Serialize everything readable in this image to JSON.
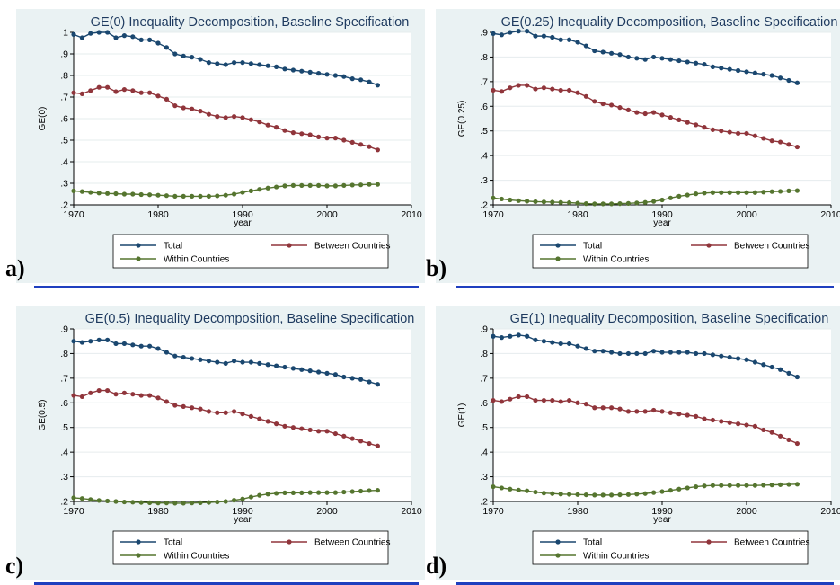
{
  "panel_labels": [
    "a)",
    "b)",
    "c)",
    "d)"
  ],
  "colors": {
    "background": "#eaf2f3",
    "total": "#1a476f",
    "between": "#90353b",
    "within": "#55752f",
    "underline": "#1f3fbf"
  },
  "chart_data": [
    {
      "type": "line",
      "title": "GE(0) Inequality Decomposition, Baseline Specification",
      "xlabel": "year",
      "ylabel": "GE(0)",
      "xlim": [
        1970,
        2010
      ],
      "ylim": [
        0.2,
        1.0
      ],
      "xticks": [
        "1970",
        "1980",
        "1990",
        "2000",
        "2010"
      ],
      "yticks": [
        ".2",
        ".3",
        ".4",
        ".5",
        ".6",
        ".7",
        ".8",
        ".9",
        "1"
      ],
      "legend": "bottom",
      "x": [
        1970,
        1971,
        1972,
        1973,
        1974,
        1975,
        1976,
        1977,
        1978,
        1979,
        1980,
        1981,
        1982,
        1983,
        1984,
        1985,
        1986,
        1987,
        1988,
        1989,
        1990,
        1991,
        1992,
        1993,
        1994,
        1995,
        1996,
        1997,
        1998,
        1999,
        2000,
        2001,
        2002,
        2003,
        2004,
        2005,
        2006
      ],
      "series": [
        {
          "name": "Total",
          "values": [
            0.99,
            0.975,
            0.995,
            1.0,
            1.0,
            0.975,
            0.985,
            0.98,
            0.965,
            0.965,
            0.95,
            0.93,
            0.9,
            0.89,
            0.885,
            0.875,
            0.86,
            0.855,
            0.85,
            0.86,
            0.86,
            0.855,
            0.85,
            0.845,
            0.84,
            0.83,
            0.825,
            0.82,
            0.815,
            0.81,
            0.805,
            0.8,
            0.795,
            0.785,
            0.78,
            0.77,
            0.755
          ]
        },
        {
          "name": "Between Countries",
          "values": [
            0.72,
            0.715,
            0.73,
            0.745,
            0.745,
            0.725,
            0.735,
            0.73,
            0.72,
            0.72,
            0.705,
            0.69,
            0.66,
            0.65,
            0.645,
            0.635,
            0.62,
            0.61,
            0.605,
            0.61,
            0.605,
            0.595,
            0.585,
            0.57,
            0.56,
            0.545,
            0.535,
            0.53,
            0.525,
            0.515,
            0.51,
            0.51,
            0.5,
            0.49,
            0.48,
            0.47,
            0.455
          ]
        },
        {
          "name": "Within Countries",
          "values": [
            0.265,
            0.262,
            0.258,
            0.255,
            0.253,
            0.252,
            0.25,
            0.25,
            0.248,
            0.247,
            0.245,
            0.243,
            0.24,
            0.24,
            0.24,
            0.24,
            0.24,
            0.242,
            0.245,
            0.25,
            0.258,
            0.265,
            0.272,
            0.278,
            0.283,
            0.288,
            0.29,
            0.29,
            0.29,
            0.29,
            0.288,
            0.288,
            0.29,
            0.292,
            0.293,
            0.295,
            0.295
          ]
        }
      ]
    },
    {
      "type": "line",
      "title": "GE(0.25) Inequality Decomposition, Baseline Specification",
      "xlabel": "year",
      "ylabel": "GE(0.25)",
      "xlim": [
        1970,
        2010
      ],
      "ylim": [
        0.2,
        0.9
      ],
      "xticks": [
        "1970",
        "1980",
        "1990",
        "2000",
        "2010"
      ],
      "yticks": [
        ".2",
        ".3",
        ".4",
        ".5",
        ".6",
        ".7",
        ".8",
        ".9"
      ],
      "legend": "bottom",
      "x": [
        1970,
        1971,
        1972,
        1973,
        1974,
        1975,
        1976,
        1977,
        1978,
        1979,
        1980,
        1981,
        1982,
        1983,
        1984,
        1985,
        1986,
        1987,
        1988,
        1989,
        1990,
        1991,
        1992,
        1993,
        1994,
        1995,
        1996,
        1997,
        1998,
        1999,
        2000,
        2001,
        2002,
        2003,
        2004,
        2005,
        2006
      ],
      "series": [
        {
          "name": "Total",
          "values": [
            0.895,
            0.89,
            0.9,
            0.905,
            0.905,
            0.885,
            0.885,
            0.88,
            0.87,
            0.87,
            0.86,
            0.845,
            0.825,
            0.82,
            0.815,
            0.81,
            0.8,
            0.795,
            0.79,
            0.8,
            0.795,
            0.79,
            0.785,
            0.78,
            0.775,
            0.77,
            0.76,
            0.755,
            0.75,
            0.745,
            0.74,
            0.735,
            0.73,
            0.725,
            0.715,
            0.705,
            0.695
          ]
        },
        {
          "name": "Between Countries",
          "values": [
            0.665,
            0.66,
            0.675,
            0.685,
            0.685,
            0.67,
            0.675,
            0.67,
            0.665,
            0.665,
            0.655,
            0.64,
            0.62,
            0.61,
            0.605,
            0.595,
            0.585,
            0.575,
            0.57,
            0.575,
            0.565,
            0.555,
            0.545,
            0.535,
            0.525,
            0.515,
            0.505,
            0.5,
            0.495,
            0.49,
            0.49,
            0.48,
            0.47,
            0.46,
            0.455,
            0.445,
            0.435
          ]
        },
        {
          "name": "Within Countries",
          "values": [
            0.228,
            0.224,
            0.22,
            0.217,
            0.215,
            0.213,
            0.212,
            0.211,
            0.21,
            0.209,
            0.207,
            0.205,
            0.204,
            0.204,
            0.204,
            0.205,
            0.206,
            0.208,
            0.21,
            0.214,
            0.22,
            0.228,
            0.235,
            0.24,
            0.245,
            0.248,
            0.25,
            0.25,
            0.25,
            0.25,
            0.25,
            0.25,
            0.252,
            0.254,
            0.255,
            0.257,
            0.258
          ]
        }
      ]
    },
    {
      "type": "line",
      "title": "GE(0.5) Inequality Decomposition, Baseline Specification",
      "xlabel": "year",
      "ylabel": "GE(0.5)",
      "xlim": [
        1970,
        2010
      ],
      "ylim": [
        0.2,
        0.9
      ],
      "xticks": [
        "1970",
        "1980",
        "1990",
        "2000",
        "2010"
      ],
      "yticks": [
        ".2",
        ".3",
        ".4",
        ".5",
        ".6",
        ".7",
        ".8",
        ".9"
      ],
      "legend": "bottom",
      "x": [
        1970,
        1971,
        1972,
        1973,
        1974,
        1975,
        1976,
        1977,
        1978,
        1979,
        1980,
        1981,
        1982,
        1983,
        1984,
        1985,
        1986,
        1987,
        1988,
        1989,
        1990,
        1991,
        1992,
        1993,
        1994,
        1995,
        1996,
        1997,
        1998,
        1999,
        2000,
        2001,
        2002,
        2003,
        2004,
        2005,
        2006
      ],
      "series": [
        {
          "name": "Total",
          "values": [
            0.85,
            0.845,
            0.85,
            0.855,
            0.855,
            0.84,
            0.84,
            0.835,
            0.83,
            0.83,
            0.82,
            0.805,
            0.79,
            0.785,
            0.78,
            0.775,
            0.77,
            0.765,
            0.76,
            0.77,
            0.765,
            0.765,
            0.76,
            0.755,
            0.75,
            0.745,
            0.74,
            0.735,
            0.73,
            0.725,
            0.72,
            0.715,
            0.705,
            0.7,
            0.695,
            0.685,
            0.675
          ]
        },
        {
          "name": "Between Countries",
          "values": [
            0.63,
            0.625,
            0.64,
            0.65,
            0.65,
            0.635,
            0.64,
            0.635,
            0.63,
            0.63,
            0.62,
            0.605,
            0.59,
            0.585,
            0.58,
            0.575,
            0.565,
            0.56,
            0.56,
            0.565,
            0.555,
            0.545,
            0.535,
            0.525,
            0.515,
            0.505,
            0.5,
            0.495,
            0.49,
            0.485,
            0.485,
            0.475,
            0.465,
            0.455,
            0.445,
            0.435,
            0.425
          ]
        },
        {
          "name": "Within Countries",
          "values": [
            0.215,
            0.212,
            0.208,
            0.204,
            0.202,
            0.2,
            0.198,
            0.197,
            0.196,
            0.195,
            0.194,
            0.194,
            0.193,
            0.193,
            0.194,
            0.195,
            0.196,
            0.198,
            0.2,
            0.205,
            0.21,
            0.218,
            0.225,
            0.23,
            0.233,
            0.235,
            0.235,
            0.235,
            0.236,
            0.236,
            0.236,
            0.236,
            0.238,
            0.24,
            0.242,
            0.244,
            0.245
          ]
        }
      ]
    },
    {
      "type": "line",
      "title": "GE(1) Inequality Decomposition, Baseline Specification",
      "xlabel": "year",
      "ylabel": "GE(1)",
      "xlim": [
        1970,
        2010
      ],
      "ylim": [
        0.2,
        0.9
      ],
      "xticks": [
        "1970",
        "1980",
        "1990",
        "2000",
        "2010"
      ],
      "yticks": [
        ".2",
        ".3",
        ".4",
        ".5",
        ".6",
        ".7",
        ".8",
        ".9"
      ],
      "legend": "bottom",
      "x": [
        1970,
        1971,
        1972,
        1973,
        1974,
        1975,
        1976,
        1977,
        1978,
        1979,
        1980,
        1981,
        1982,
        1983,
        1984,
        1985,
        1986,
        1987,
        1988,
        1989,
        1990,
        1991,
        1992,
        1993,
        1994,
        1995,
        1996,
        1997,
        1998,
        1999,
        2000,
        2001,
        2002,
        2003,
        2004,
        2005,
        2006
      ],
      "series": [
        {
          "name": "Total",
          "values": [
            0.87,
            0.865,
            0.87,
            0.875,
            0.87,
            0.855,
            0.85,
            0.845,
            0.84,
            0.84,
            0.83,
            0.82,
            0.81,
            0.81,
            0.805,
            0.8,
            0.8,
            0.8,
            0.8,
            0.81,
            0.805,
            0.805,
            0.805,
            0.805,
            0.8,
            0.8,
            0.795,
            0.79,
            0.785,
            0.78,
            0.775,
            0.765,
            0.755,
            0.745,
            0.735,
            0.72,
            0.705
          ]
        },
        {
          "name": "Between Countries",
          "values": [
            0.61,
            0.605,
            0.615,
            0.625,
            0.625,
            0.61,
            0.61,
            0.61,
            0.605,
            0.61,
            0.6,
            0.595,
            0.58,
            0.58,
            0.58,
            0.575,
            0.565,
            0.565,
            0.565,
            0.57,
            0.565,
            0.56,
            0.555,
            0.55,
            0.545,
            0.535,
            0.53,
            0.525,
            0.52,
            0.515,
            0.51,
            0.505,
            0.49,
            0.48,
            0.465,
            0.45,
            0.435
          ]
        },
        {
          "name": "Within Countries",
          "values": [
            0.26,
            0.255,
            0.25,
            0.246,
            0.243,
            0.238,
            0.234,
            0.232,
            0.23,
            0.229,
            0.228,
            0.227,
            0.226,
            0.226,
            0.226,
            0.227,
            0.228,
            0.23,
            0.232,
            0.236,
            0.24,
            0.245,
            0.25,
            0.255,
            0.26,
            0.263,
            0.265,
            0.265,
            0.265,
            0.265,
            0.265,
            0.265,
            0.266,
            0.267,
            0.268,
            0.269,
            0.27
          ]
        }
      ]
    }
  ]
}
